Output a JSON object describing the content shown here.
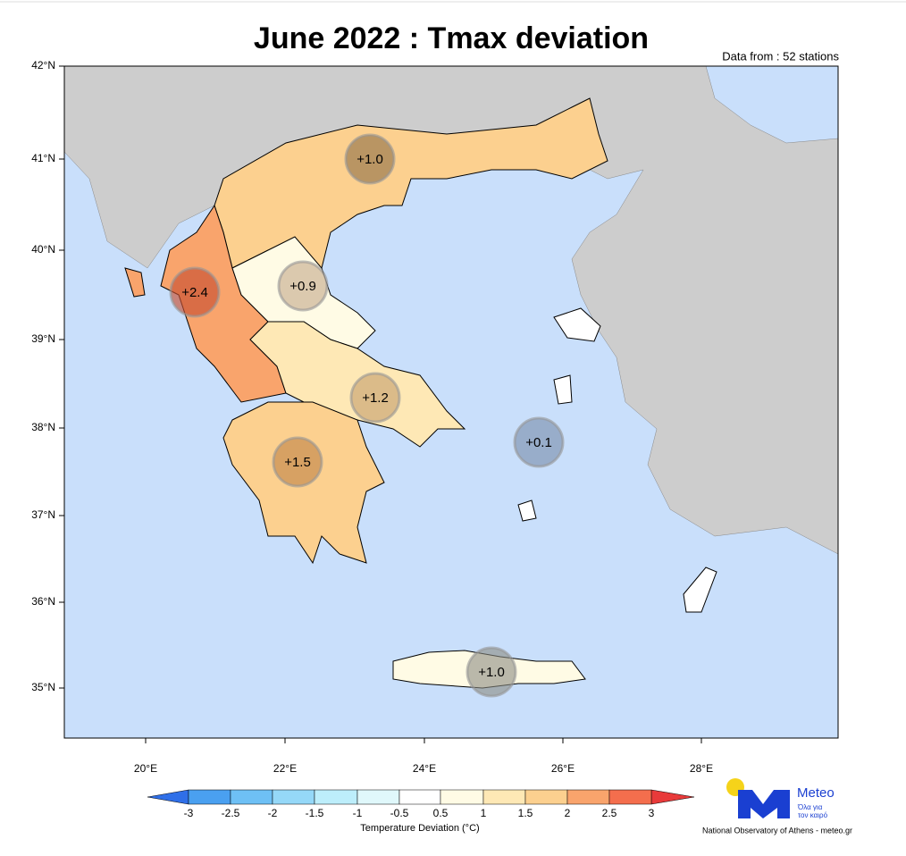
{
  "title": "June 2022 : Tmax deviation",
  "subtitle": "Data from : 52 stations",
  "lat_labels": [
    "42°N",
    "41°N",
    "40°N",
    "39°N",
    "38°N",
    "37°N",
    "36°N",
    "35°N"
  ],
  "lon_labels": [
    "20°E",
    "22°E",
    "24°E",
    "26°E",
    "28°E"
  ],
  "stations": [
    {
      "label": "+1.0"
    },
    {
      "label": "+0.9"
    },
    {
      "label": "+2.4"
    },
    {
      "label": "+1.2"
    },
    {
      "label": "+1.5"
    },
    {
      "label": "+0.1"
    },
    {
      "label": "+1.0"
    }
  ],
  "colorbar": {
    "ticks": [
      "-3",
      "-2.5",
      "-2",
      "-1.5",
      "-1",
      "-0.5",
      "0.5",
      "1",
      "1.5",
      "2",
      "2.5",
      "3"
    ],
    "title": "Temperature Deviation (°C)"
  },
  "logo": {
    "name": "Meteo",
    "tagline1": "Όλα για",
    "tagline2": "τον καιρό"
  },
  "credit": "National Observatory of Athens - meteo.gr"
}
